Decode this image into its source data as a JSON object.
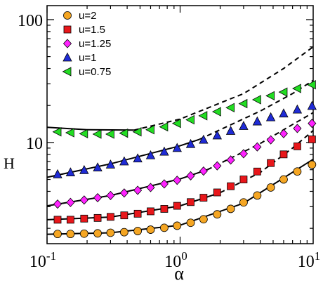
{
  "chart_data": {
    "type": "scatter",
    "title": "",
    "xlabel": "α",
    "ylabel": "H",
    "xscale": "log",
    "yscale": "log",
    "xlim": [
      0.1,
      10
    ],
    "ylim": [
      1.5,
      130
    ],
    "grid": false,
    "legend_position": "top-left",
    "x_ticks": [
      {
        "value": 0.1,
        "base": "10",
        "exp": "-1"
      },
      {
        "value": 1,
        "base": "10",
        "exp": "0"
      },
      {
        "value": 10,
        "base": "10",
        "exp": "1"
      }
    ],
    "y_ticks": [
      {
        "value": 10,
        "label": "10"
      },
      {
        "value": 100,
        "label": "100"
      }
    ],
    "series": [
      {
        "name": "u=2",
        "marker": "circle",
        "color": "#f5a623",
        "points": [
          [
            0.12,
            1.8
          ],
          [
            0.15,
            1.8
          ],
          [
            0.19,
            1.81
          ],
          [
            0.24,
            1.82
          ],
          [
            0.3,
            1.84
          ],
          [
            0.38,
            1.86
          ],
          [
            0.48,
            1.9
          ],
          [
            0.6,
            1.95
          ],
          [
            0.76,
            2.02
          ],
          [
            0.95,
            2.1
          ],
          [
            1.2,
            2.22
          ],
          [
            1.5,
            2.37
          ],
          [
            1.9,
            2.6
          ],
          [
            2.4,
            2.88
          ],
          [
            3.0,
            3.25
          ],
          [
            3.8,
            3.7
          ],
          [
            4.8,
            4.3
          ],
          [
            6.0,
            5.0
          ],
          [
            7.6,
            5.8
          ],
          [
            9.8,
            6.6
          ]
        ],
        "fit_solid": [
          [
            0.1,
            1.79
          ],
          [
            0.3,
            1.84
          ],
          [
            1.0,
            2.12
          ],
          [
            3.0,
            3.2
          ],
          [
            10,
            7.3
          ]
        ]
      },
      {
        "name": "u=1.5",
        "marker": "square",
        "color": "#e8171b",
        "points": [
          [
            0.12,
            2.35
          ],
          [
            0.15,
            2.35
          ],
          [
            0.19,
            2.4
          ],
          [
            0.24,
            2.43
          ],
          [
            0.3,
            2.48
          ],
          [
            0.38,
            2.55
          ],
          [
            0.48,
            2.63
          ],
          [
            0.6,
            2.75
          ],
          [
            0.76,
            2.88
          ],
          [
            0.95,
            3.05
          ],
          [
            1.2,
            3.27
          ],
          [
            1.5,
            3.55
          ],
          [
            1.9,
            3.92
          ],
          [
            2.4,
            4.4
          ],
          [
            3.0,
            5.0
          ],
          [
            3.8,
            5.8
          ],
          [
            4.8,
            6.8
          ],
          [
            6.0,
            8.0
          ],
          [
            7.6,
            9.3
          ],
          [
            9.8,
            10.6
          ]
        ],
        "fit_solid": [
          [
            0.1,
            2.35
          ],
          [
            0.3,
            2.47
          ],
          [
            1.0,
            3.05
          ],
          [
            2.0,
            3.9
          ]
        ],
        "fit_dashed": [
          [
            2.0,
            3.9
          ],
          [
            4.0,
            5.7
          ],
          [
            7.0,
            9.0
          ],
          [
            10,
            12.5
          ]
        ]
      },
      {
        "name": "u=1.25",
        "marker": "diamond",
        "color": "#ff22ff",
        "points": [
          [
            0.12,
            3.15
          ],
          [
            0.15,
            3.25
          ],
          [
            0.19,
            3.4
          ],
          [
            0.24,
            3.55
          ],
          [
            0.3,
            3.7
          ],
          [
            0.38,
            3.88
          ],
          [
            0.48,
            4.08
          ],
          [
            0.6,
            4.3
          ],
          [
            0.76,
            4.6
          ],
          [
            0.95,
            4.92
          ],
          [
            1.2,
            5.35
          ],
          [
            1.5,
            5.85
          ],
          [
            1.9,
            6.45
          ],
          [
            2.4,
            7.2
          ],
          [
            3.0,
            8.1
          ],
          [
            3.8,
            9.2
          ],
          [
            4.8,
            10.5
          ],
          [
            6.0,
            11.8
          ],
          [
            7.6,
            13.0
          ],
          [
            9.8,
            14.3
          ]
        ],
        "fit_solid": [
          [
            0.1,
            3.05
          ],
          [
            0.3,
            3.7
          ],
          [
            1.0,
            5.05
          ],
          [
            1.6,
            6.0
          ]
        ],
        "fit_dashed": [
          [
            1.6,
            6.0
          ],
          [
            4.0,
            9.8
          ],
          [
            7.0,
            14.0
          ],
          [
            10,
            17.5
          ]
        ]
      },
      {
        "name": "u=1",
        "marker": "triangle-up",
        "color": "#1f2bd6",
        "points": [
          [
            0.12,
            5.5
          ],
          [
            0.15,
            5.7
          ],
          [
            0.19,
            5.95
          ],
          [
            0.24,
            6.25
          ],
          [
            0.3,
            6.6
          ],
          [
            0.38,
            7.0
          ],
          [
            0.48,
            7.4
          ],
          [
            0.6,
            7.85
          ],
          [
            0.76,
            8.4
          ],
          [
            0.95,
            9.0
          ],
          [
            1.2,
            9.7
          ],
          [
            1.5,
            10.5
          ],
          [
            1.9,
            11.4
          ],
          [
            2.4,
            12.4
          ],
          [
            3.0,
            13.6
          ],
          [
            3.8,
            14.8
          ],
          [
            4.8,
            16.0
          ],
          [
            6.0,
            17.2
          ],
          [
            7.6,
            18.5
          ],
          [
            9.8,
            19.8
          ]
        ],
        "fit_solid": [
          [
            0.1,
            5.2
          ],
          [
            0.3,
            6.7
          ],
          [
            1.0,
            9.4
          ],
          [
            1.4,
            10.6
          ]
        ],
        "fit_dashed": [
          [
            1.4,
            10.6
          ],
          [
            4.0,
            18.0
          ],
          [
            7.0,
            25.0
          ],
          [
            10,
            32.0
          ]
        ]
      },
      {
        "name": "u=0.75",
        "marker": "triangle-left",
        "color": "#22dd22",
        "points": [
          [
            0.12,
            12.2
          ],
          [
            0.15,
            12.0
          ],
          [
            0.19,
            11.8
          ],
          [
            0.24,
            11.7
          ],
          [
            0.3,
            11.7
          ],
          [
            0.38,
            11.9
          ],
          [
            0.48,
            12.2
          ],
          [
            0.6,
            12.7
          ],
          [
            0.76,
            13.4
          ],
          [
            0.95,
            14.3
          ],
          [
            1.2,
            15.3
          ],
          [
            1.5,
            16.5
          ],
          [
            1.9,
            17.8
          ],
          [
            2.4,
            19.2
          ],
          [
            3.0,
            20.7
          ],
          [
            3.8,
            22.3
          ],
          [
            4.8,
            24.0
          ],
          [
            6.0,
            25.7
          ],
          [
            7.6,
            27.5
          ],
          [
            9.8,
            29.5
          ]
        ],
        "fit_solid": [
          [
            0.1,
            13.3
          ],
          [
            0.2,
            12.7
          ],
          [
            0.45,
            12.6
          ]
        ],
        "fit_dashed": [
          [
            0.45,
            12.6
          ],
          [
            1.0,
            15.5
          ],
          [
            3.0,
            25.0
          ],
          [
            6.0,
            40.0
          ],
          [
            10,
            60.0
          ]
        ]
      }
    ]
  }
}
